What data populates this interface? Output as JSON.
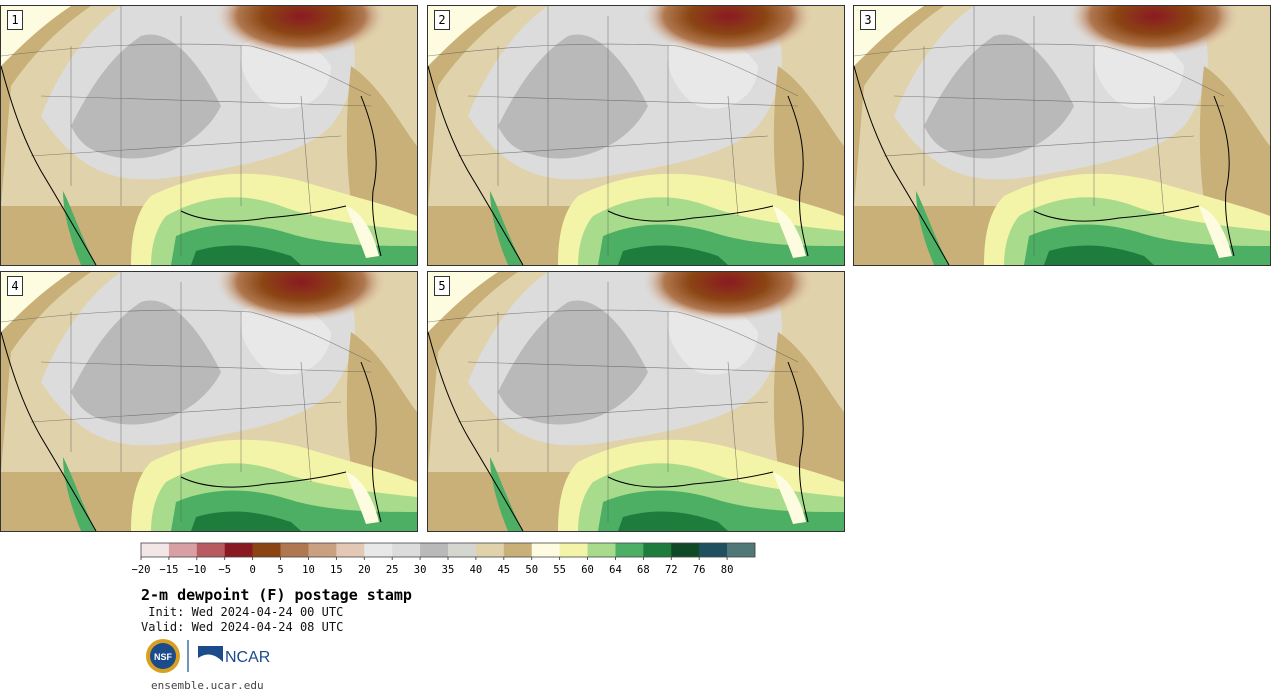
{
  "panels": [
    {
      "label": "1"
    },
    {
      "label": "2"
    },
    {
      "label": "3"
    },
    {
      "label": "4"
    },
    {
      "label": "5"
    }
  ],
  "colorbar": {
    "tick_labels": [
      "−20",
      "−15",
      "−10",
      "−5",
      "0",
      "5",
      "10",
      "15",
      "20",
      "25",
      "30",
      "35",
      "40",
      "45",
      "50",
      "55",
      "60",
      "64",
      "68",
      "72",
      "76",
      "80"
    ],
    "colors": [
      "#f3e6e6",
      "#d9a0a3",
      "#b85a5f",
      "#8a1a22",
      "#8b4513",
      "#b07850",
      "#c9a080",
      "#e3c8b5",
      "#e8e8e8",
      "#dcdcdc",
      "#b9b9b9",
      "#d6d6d0",
      "#e0d2aa",
      "#c8b078",
      "#fefce0",
      "#f4f4a8",
      "#a8dc8c",
      "#4caf64",
      "#1e7c3c",
      "#0f4a26",
      "#1e5060",
      "#507878"
    ]
  },
  "title": "2-m dewpoint (F) postage stamp",
  "init": " Init: Wed 2024-04-24 00 UTC",
  "valid": "Valid: Wed 2024-04-24 08 UTC",
  "logos": {
    "nsf": "NSF",
    "ncar": "NCAR"
  },
  "website": "ensemble.ucar.edu"
}
